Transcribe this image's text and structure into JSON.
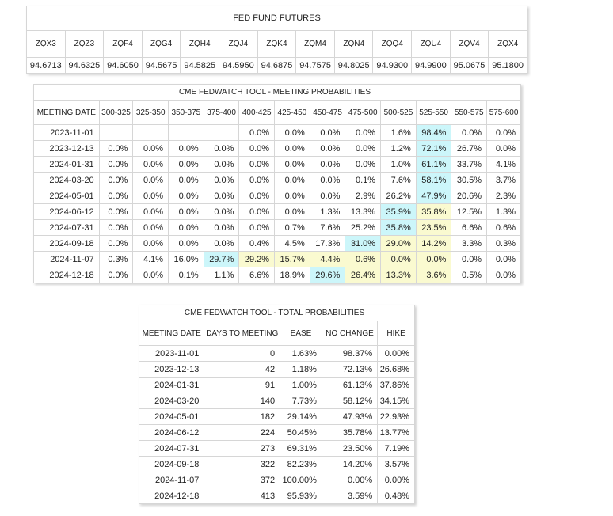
{
  "futures": {
    "title": "FED FUND FUTURES",
    "contracts": [
      "ZQX3",
      "ZQZ3",
      "ZQF4",
      "ZQG4",
      "ZQH4",
      "ZQJ4",
      "ZQK4",
      "ZQM4",
      "ZQN4",
      "ZQQ4",
      "ZQU4",
      "ZQV4",
      "ZQX4"
    ],
    "prices": [
      "94.6713",
      "94.6325",
      "94.6050",
      "94.5675",
      "94.5825",
      "94.5950",
      "94.6875",
      "94.7575",
      "94.8025",
      "94.9300",
      "94.9900",
      "95.0675",
      "95.1800"
    ]
  },
  "meeting": {
    "title": "CME FEDWATCH TOOL - MEETING PROBABILITIES",
    "headers": [
      "MEETING DATE",
      "300-325",
      "325-350",
      "350-375",
      "375-400",
      "400-425",
      "425-450",
      "450-475",
      "475-500",
      "500-525",
      "525-550",
      "550-575",
      "575-600"
    ],
    "rows": [
      {
        "date": "2023-11-01",
        "cells": [
          "",
          "",
          "",
          "",
          "0.0%",
          "0.0%",
          "0.0%",
          "0.0%",
          "1.6%",
          "98.4%",
          "0.0%",
          "0.0%"
        ],
        "hl": {
          "9": "blue"
        }
      },
      {
        "date": "2023-12-13",
        "cells": [
          "0.0%",
          "0.0%",
          "0.0%",
          "0.0%",
          "0.0%",
          "0.0%",
          "0.0%",
          "0.0%",
          "1.2%",
          "72.1%",
          "26.7%",
          "0.0%"
        ],
        "hl": {
          "9": "blue"
        }
      },
      {
        "date": "2024-01-31",
        "cells": [
          "0.0%",
          "0.0%",
          "0.0%",
          "0.0%",
          "0.0%",
          "0.0%",
          "0.0%",
          "0.0%",
          "1.0%",
          "61.1%",
          "33.7%",
          "4.1%"
        ],
        "hl": {
          "9": "blue"
        }
      },
      {
        "date": "2024-03-20",
        "cells": [
          "0.0%",
          "0.0%",
          "0.0%",
          "0.0%",
          "0.0%",
          "0.0%",
          "0.0%",
          "0.1%",
          "7.6%",
          "58.1%",
          "30.5%",
          "3.7%"
        ],
        "hl": {
          "9": "blue"
        }
      },
      {
        "date": "2024-05-01",
        "cells": [
          "0.0%",
          "0.0%",
          "0.0%",
          "0.0%",
          "0.0%",
          "0.0%",
          "0.0%",
          "2.9%",
          "26.2%",
          "47.9%",
          "20.6%",
          "2.3%"
        ],
        "hl": {
          "9": "blue"
        }
      },
      {
        "date": "2024-06-12",
        "cells": [
          "0.0%",
          "0.0%",
          "0.0%",
          "0.0%",
          "0.0%",
          "0.0%",
          "1.3%",
          "13.3%",
          "35.9%",
          "35.8%",
          "12.5%",
          "1.3%"
        ],
        "hl": {
          "8": "blue",
          "9": "yellow"
        }
      },
      {
        "date": "2024-07-31",
        "cells": [
          "0.0%",
          "0.0%",
          "0.0%",
          "0.0%",
          "0.0%",
          "0.7%",
          "7.6%",
          "25.2%",
          "35.8%",
          "23.5%",
          "6.6%",
          "0.6%"
        ],
        "hl": {
          "8": "blue",
          "9": "yellow"
        }
      },
      {
        "date": "2024-09-18",
        "cells": [
          "0.0%",
          "0.0%",
          "0.0%",
          "0.0%",
          "0.4%",
          "4.5%",
          "17.3%",
          "31.0%",
          "29.0%",
          "14.2%",
          "3.3%",
          "0.3%"
        ],
        "hl": {
          "7": "blue",
          "8": "yellow",
          "9": "yellow"
        }
      },
      {
        "date": "2024-11-07",
        "cells": [
          "0.3%",
          "4.1%",
          "16.0%",
          "29.7%",
          "29.2%",
          "15.7%",
          "4.4%",
          "0.6%",
          "0.0%",
          "0.0%",
          "0.0%",
          "0.0%"
        ],
        "hl": {
          "3": "blue",
          "4": "yellow",
          "5": "yellow",
          "6": "yellow",
          "7": "yellow",
          "8": "yellow",
          "9": "yellow"
        }
      },
      {
        "date": "2024-12-18",
        "cells": [
          "0.0%",
          "0.0%",
          "0.1%",
          "1.1%",
          "6.6%",
          "18.9%",
          "29.6%",
          "26.4%",
          "13.3%",
          "3.6%",
          "0.5%",
          "0.0%"
        ],
        "hl": {
          "6": "blue",
          "7": "yellow",
          "8": "yellow",
          "9": "yellow"
        }
      }
    ]
  },
  "totals": {
    "title": "CME FEDWATCH TOOL - TOTAL PROBABILITIES",
    "headers": [
      "MEETING DATE",
      "DAYS TO MEETING",
      "EASE",
      "NO CHANGE",
      "HIKE"
    ],
    "rows": [
      [
        "2023-11-01",
        "0",
        "1.63%",
        "98.37%",
        "0.00%"
      ],
      [
        "2023-12-13",
        "42",
        "1.18%",
        "72.13%",
        "26.68%"
      ],
      [
        "2024-01-31",
        "91",
        "1.00%",
        "61.13%",
        "37.86%"
      ],
      [
        "2024-03-20",
        "140",
        "7.73%",
        "58.12%",
        "34.15%"
      ],
      [
        "2024-05-01",
        "182",
        "29.14%",
        "47.93%",
        "22.93%"
      ],
      [
        "2024-06-12",
        "224",
        "50.45%",
        "35.78%",
        "13.77%"
      ],
      [
        "2024-07-31",
        "273",
        "69.31%",
        "23.50%",
        "7.19%"
      ],
      [
        "2024-09-18",
        "322",
        "82.23%",
        "14.20%",
        "3.57%"
      ],
      [
        "2024-11-07",
        "372",
        "100.00%",
        "0.00%",
        "0.00%"
      ],
      [
        "2024-12-18",
        "413",
        "95.93%",
        "3.59%",
        "0.48%"
      ]
    ]
  },
  "colors": {
    "highlight_blue": "#ccf6fa",
    "highlight_yellow": "#fafad0",
    "border": "#d6d6d6"
  }
}
